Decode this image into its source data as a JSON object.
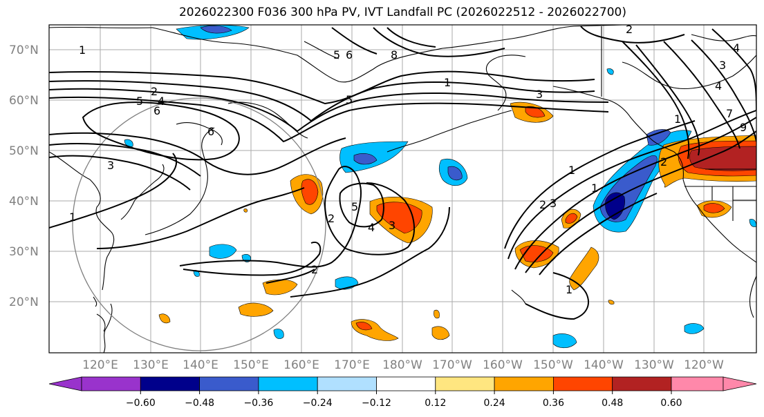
{
  "title": "2026022300 F036 300 hPa PV, IVT Landfall PC (2026022512 - 2026022700)",
  "lat_labels": [
    "70°N",
    "60°N",
    "50°N",
    "40°N",
    "30°N",
    "20°N"
  ],
  "lon_labels": [
    "120°E",
    "130°E",
    "140°E",
    "150°E",
    "160°E",
    "170°E",
    "180°W",
    "170°W",
    "160°W",
    "150°W",
    "140°W",
    "130°W",
    "120°W"
  ],
  "colorbar": {
    "ticks": [
      "−0.60",
      "−0.48",
      "−0.36",
      "−0.24",
      "−0.12",
      "0.12",
      "0.24",
      "0.36",
      "0.48",
      "0.60"
    ],
    "colors": [
      "#9933cc",
      "#00008b",
      "#3a5bcc",
      "#00bfff",
      "#b0e0ff",
      "#ffffff",
      "#ffe680",
      "#ffa500",
      "#ff4500",
      "#b22222",
      "#ff88aa"
    ]
  },
  "contour_labels": [
    "1",
    "1",
    "2",
    "3",
    "4",
    "5",
    "6",
    "8",
    "5",
    "6",
    "7",
    "9",
    "4",
    "2",
    "1",
    "3",
    "2",
    "3",
    "4",
    "5",
    "2",
    "1",
    "1",
    "2",
    "3",
    "1",
    "1",
    "2",
    "5",
    "6",
    "4",
    "3"
  ]
}
